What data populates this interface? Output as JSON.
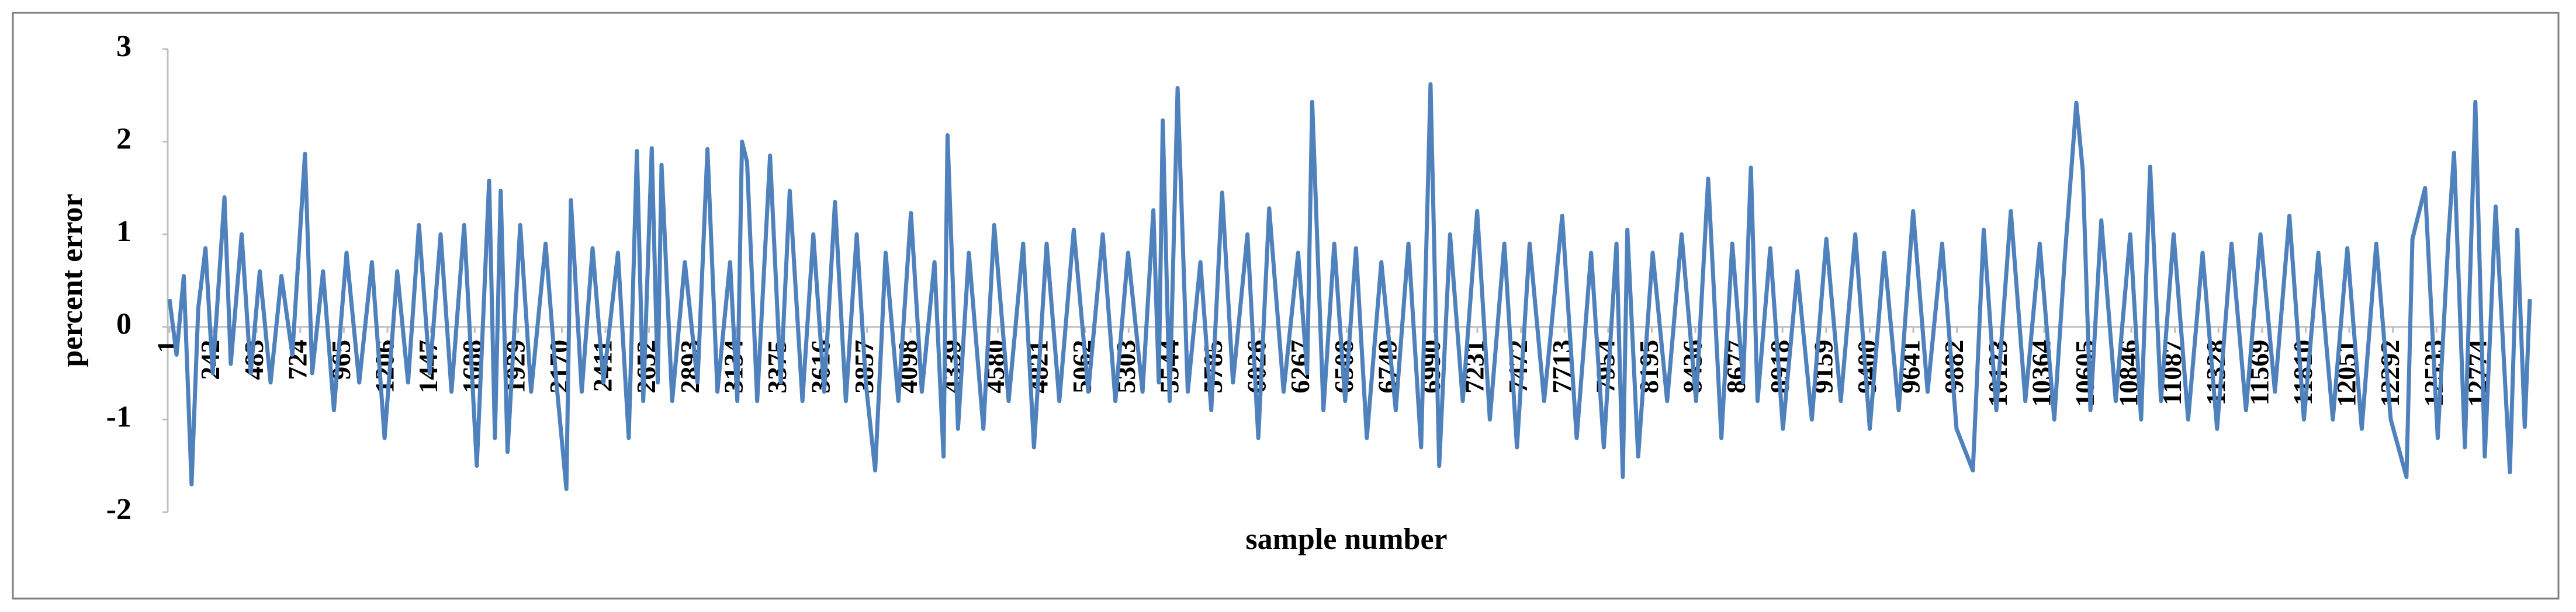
{
  "chart_data": {
    "type": "line",
    "x_label": "sample number",
    "y_label": "percent error",
    "xlim": [
      1,
      13049
    ],
    "ylim": [
      -2,
      3
    ],
    "yticks": [
      -2,
      -1,
      0,
      1,
      2,
      3
    ],
    "xticks": [
      1,
      242,
      483,
      724,
      965,
      1206,
      1447,
      1688,
      1929,
      2170,
      2411,
      2652,
      2893,
      3134,
      3375,
      3616,
      3857,
      4098,
      4339,
      4580,
      4821,
      5062,
      5303,
      5544,
      5785,
      6026,
      6267,
      6508,
      6749,
      6990,
      7231,
      7472,
      7713,
      7954,
      8195,
      8436,
      8677,
      8918,
      9159,
      9400,
      9641,
      9882,
      10123,
      10364,
      10605,
      10846,
      11087,
      11328,
      11569,
      11810,
      12051,
      12292,
      12533,
      12774
    ],
    "grid": false,
    "series": [
      {
        "color": "#4f81bd",
        "x": [
          1,
          40,
          80,
          123,
          160,
          200,
          240,
          305,
          340,
          400,
          450,
          500,
          560,
          620,
          680,
          750,
          790,
          850,
          910,
          980,
          1050,
          1120,
          1190,
          1260,
          1320,
          1380,
          1440,
          1500,
          1560,
          1630,
          1700,
          1768,
          1800,
          1832,
          1870,
          1940,
          2000,
          2080,
          2140,
          2195,
          2220,
          2280,
          2340,
          2400,
          2480,
          2540,
          2585,
          2620,
          2667,
          2700,
          2721,
          2780,
          2850,
          2920,
          2975,
          3030,
          3100,
          3140,
          3166,
          3194,
          3250,
          3321,
          3380,
          3430,
          3500,
          3560,
          3620,
          3680,
          3740,
          3800,
          3850,
          3902,
          3960,
          4030,
          4100,
          4160,
          4230,
          4280,
          4302,
          4360,
          4420,
          4500,
          4560,
          4640,
          4720,
          4780,
          4850,
          4920,
          5000,
          5080,
          5160,
          5230,
          5300,
          5380,
          5440,
          5470,
          5492,
          5530,
          5574,
          5630,
          5700,
          5760,
          5820,
          5880,
          5960,
          6020,
          6080,
          6160,
          6240,
          6290,
          6318,
          6380,
          6440,
          6500,
          6560,
          6620,
          6700,
          6780,
          6850,
          6920,
          6972,
          7020,
          7080,
          7150,
          7230,
          7300,
          7380,
          7450,
          7520,
          7600,
          7700,
          7780,
          7860,
          7930,
          8000,
          8035,
          8060,
          8120,
          8200,
          8280,
          8360,
          8440,
          8507,
          8580,
          8640,
          8700,
          8743,
          8780,
          8850,
          8920,
          9000,
          9080,
          9160,
          9240,
          9320,
          9400,
          9480,
          9560,
          9640,
          9720,
          9800,
          9880,
          9970,
          10030,
          10100,
          10180,
          10260,
          10340,
          10420,
          10480,
          10542,
          10578,
          10620,
          10680,
          10760,
          10840,
          10900,
          10950,
          11010,
          11080,
          11160,
          11240,
          11320,
          11400,
          11480,
          11560,
          11640,
          11720,
          11800,
          11880,
          11960,
          12040,
          12120,
          12200,
          12280,
          12367,
          12400,
          12470,
          12540,
          12600,
          12630,
          12690,
          12748,
          12800,
          12860,
          12939,
          12980,
          13021,
          13049
        ],
        "values": [
          0.3,
          -0.3,
          0.55,
          -1.7,
          0.2,
          0.85,
          -0.5,
          1.4,
          -0.4,
          1.0,
          -0.5,
          0.6,
          -0.6,
          0.55,
          -0.3,
          1.87,
          -0.5,
          0.6,
          -0.9,
          0.8,
          -0.6,
          0.7,
          -1.2,
          0.6,
          -0.6,
          1.1,
          -0.5,
          1.0,
          -0.7,
          1.1,
          -1.5,
          1.58,
          -1.2,
          1.47,
          -1.35,
          1.1,
          -0.7,
          0.9,
          -0.6,
          -1.75,
          1.37,
          -0.7,
          0.85,
          -0.6,
          0.8,
          -1.2,
          1.9,
          -0.8,
          1.93,
          -0.6,
          1.75,
          -0.8,
          0.7,
          -0.6,
          1.92,
          -0.7,
          0.7,
          -0.8,
          2.0,
          1.78,
          -0.8,
          1.85,
          -0.6,
          1.47,
          -0.8,
          1.0,
          -0.7,
          1.35,
          -0.8,
          1.0,
          -0.6,
          -1.55,
          0.8,
          -0.8,
          1.23,
          -0.7,
          0.7,
          -1.4,
          2.07,
          -1.1,
          0.8,
          -1.1,
          1.1,
          -0.8,
          0.9,
          -1.3,
          0.9,
          -0.8,
          1.05,
          -0.7,
          1.0,
          -0.8,
          0.8,
          -0.7,
          1.26,
          -0.6,
          2.23,
          -0.8,
          2.58,
          -0.7,
          0.7,
          -0.9,
          1.45,
          -0.6,
          1.0,
          -1.2,
          1.28,
          -0.7,
          0.8,
          -0.5,
          2.43,
          -0.9,
          0.9,
          -0.8,
          0.85,
          -1.2,
          0.7,
          -0.9,
          0.9,
          -1.3,
          2.62,
          -1.5,
          1.0,
          -0.8,
          1.25,
          -1.0,
          0.9,
          -1.3,
          0.9,
          -0.8,
          1.2,
          -1.2,
          0.8,
          -1.3,
          0.9,
          -1.62,
          1.05,
          -1.4,
          0.8,
          -0.8,
          1.0,
          -0.8,
          1.6,
          -1.2,
          0.9,
          -0.6,
          1.72,
          -0.8,
          0.85,
          -1.1,
          0.6,
          -1.0,
          0.95,
          -0.8,
          1.0,
          -1.1,
          0.8,
          -0.9,
          1.25,
          -0.7,
          0.9,
          -1.1,
          -1.55,
          1.05,
          -0.9,
          1.25,
          -0.8,
          0.9,
          -1.0,
          0.8,
          2.42,
          1.68,
          -0.9,
          1.15,
          -0.8,
          1.0,
          -1.0,
          1.73,
          -0.8,
          1.0,
          -1.0,
          0.8,
          -1.1,
          0.9,
          -0.9,
          1.0,
          -0.7,
          1.2,
          -1.0,
          0.8,
          -1.0,
          0.85,
          -1.1,
          0.9,
          -1.0,
          -1.62,
          0.95,
          1.5,
          -1.2,
          1.0,
          1.88,
          -1.3,
          2.43,
          -1.4,
          1.3,
          -1.57,
          1.05,
          -1.08,
          0.3
        ]
      }
    ]
  }
}
